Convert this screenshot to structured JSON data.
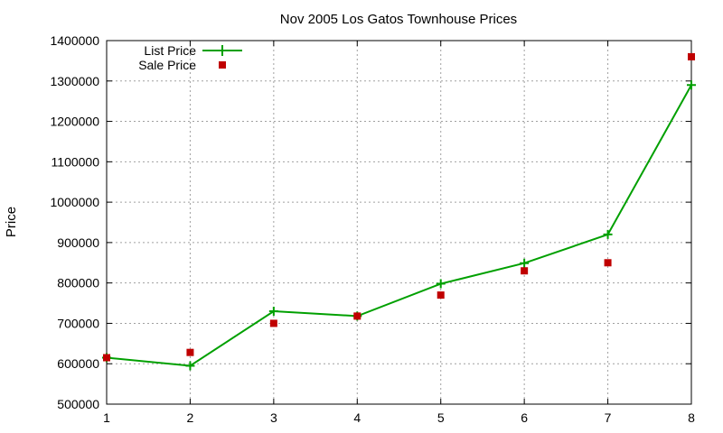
{
  "chart_data": {
    "type": "line",
    "title": "Nov 2005 Los Gatos Townhouse Prices",
    "xlabel": "",
    "ylabel": "Price",
    "x": [
      1,
      2,
      3,
      4,
      5,
      6,
      7,
      8
    ],
    "xlim": [
      1,
      8
    ],
    "ylim": [
      500000,
      1400000
    ],
    "xticks": [
      "1",
      "2",
      "3",
      "4",
      "5",
      "6",
      "7",
      "8"
    ],
    "yticks": [
      "500000",
      "600000",
      "700000",
      "800000",
      "900000",
      "1000000",
      "1100000",
      "1200000",
      "1300000",
      "1400000"
    ],
    "grid": true,
    "legend_position": "top-left",
    "series": [
      {
        "name": "List Price",
        "style": "line with plus markers",
        "color": "#00a000",
        "values": [
          615000,
          595000,
          730000,
          718000,
          798000,
          849000,
          920000,
          1290000
        ]
      },
      {
        "name": "Sale Price",
        "style": "square markers",
        "color": "#c00000",
        "values": [
          615000,
          628000,
          700000,
          718000,
          770000,
          830000,
          850000,
          1360000
        ]
      }
    ]
  }
}
